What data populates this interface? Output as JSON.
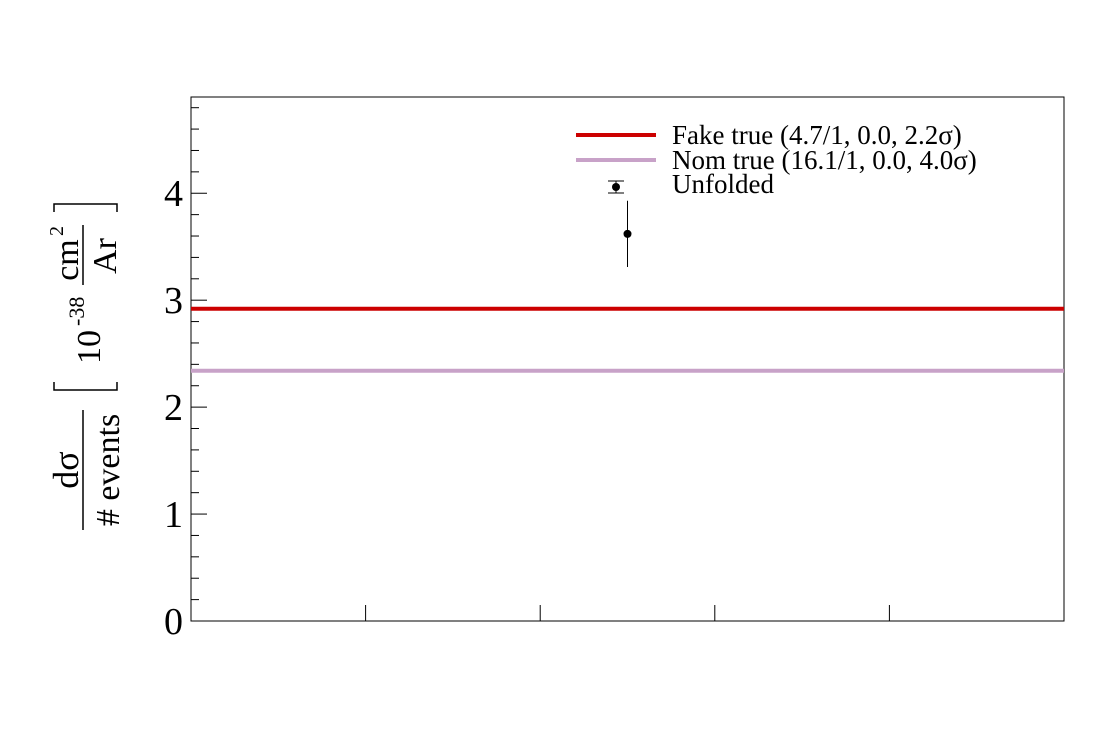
{
  "chart_data": {
    "type": "line",
    "title": "",
    "xlabel": "",
    "ylabel": {
      "numerator": "dσ",
      "denominator": "# events",
      "unit_prefix": "10",
      "unit_exponent": "-38",
      "unit_numerator": "cm",
      "unit_numerator_exponent": "2",
      "unit_denominator": "Ar"
    },
    "ylim": [
      0,
      4.9
    ],
    "xlim": [
      0,
      5
    ],
    "y_ticks": [
      0,
      1,
      2,
      3,
      4
    ],
    "y_tick_labels": [
      "0",
      "1",
      "2",
      "3",
      "4"
    ],
    "x_ticks": [
      1,
      2,
      3,
      4
    ],
    "grid": false,
    "legend_position": "top-right",
    "series": [
      {
        "name": "Fake true (4.7/1, 0.0, 2.2σ)",
        "kind": "horizontal-line",
        "color": "#cc0000",
        "y": 2.92
      },
      {
        "name": "Nom true (16.1/1, 0.0, 4.0σ)",
        "kind": "horizontal-line",
        "color": "#c8a2c8",
        "y": 2.34
      },
      {
        "name": "Unfolded",
        "kind": "points-with-errors",
        "color": "#000000",
        "points": [
          {
            "x": 2.5,
            "y": 3.62,
            "y_err_low": 0.31,
            "y_err_high": 0.31
          }
        ]
      }
    ],
    "legend_marker_color": "#000000"
  }
}
